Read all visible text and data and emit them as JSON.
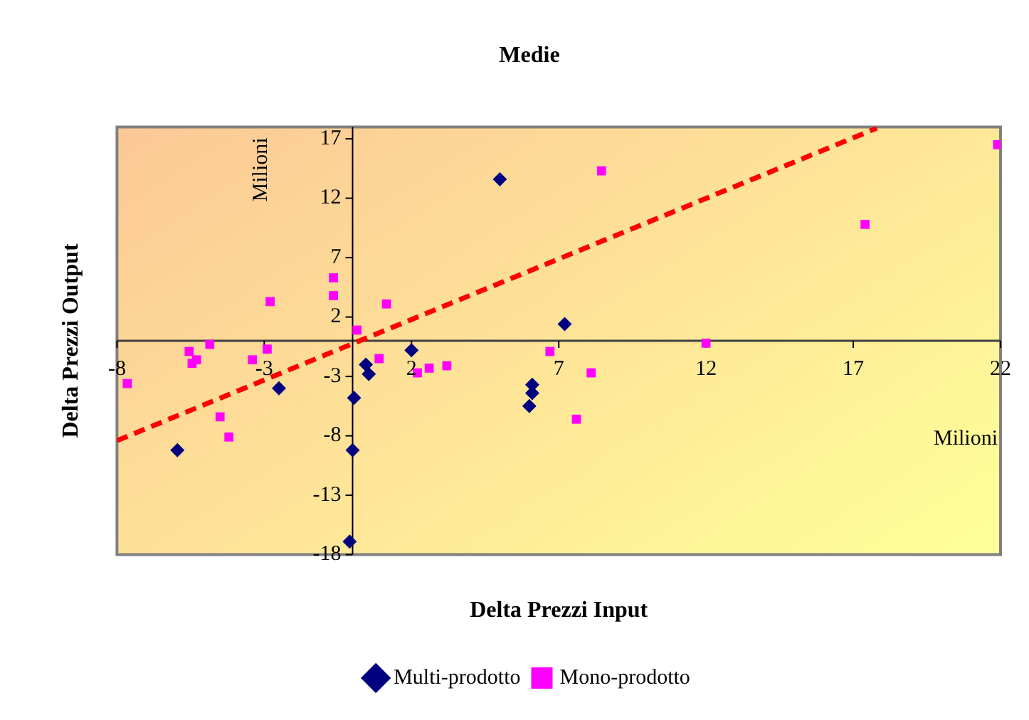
{
  "chart_data": {
    "type": "scatter",
    "title": "Medie",
    "xlabel": "Delta Prezzi Input",
    "ylabel": "Delta Prezzi Output",
    "annotations": [
      "Milioni",
      "Milioni"
    ],
    "xlim": [
      -8,
      22
    ],
    "xticks": [
      -8,
      -3,
      2,
      7,
      12,
      17,
      22
    ],
    "ylim": [
      -18,
      18
    ],
    "yticks": [
      -18,
      -13,
      -8,
      -3,
      2,
      7,
      12,
      17
    ],
    "grid": false,
    "legend": "bottom",
    "series": [
      {
        "name": "Multi-prodotto",
        "color": "#000080",
        "marker": "diamond",
        "x": [
          5.0,
          7.2,
          -5.95,
          -2.5,
          0.05,
          0.0,
          -0.1,
          0.45,
          0.55,
          2.0,
          6.1,
          6.1,
          6.0
        ],
        "values": [
          13.6,
          1.4,
          -9.2,
          -4.0,
          -4.8,
          -9.2,
          -16.9,
          -2.0,
          -2.8,
          -0.8,
          -3.7,
          -4.4,
          -5.5
        ]
      },
      {
        "name": "Mono-prodotto",
        "color": "#ff00ff",
        "marker": "square",
        "x": [
          -7.65,
          -5.55,
          -5.45,
          -5.3,
          -4.85,
          -4.5,
          -4.2,
          -3.4,
          -2.9,
          -2.8,
          -0.65,
          -0.65,
          0.15,
          0.9,
          1.15,
          2.2,
          2.6,
          3.2,
          6.7,
          8.1,
          7.6,
          8.45,
          12.0,
          17.4,
          21.9
        ],
        "values": [
          -3.6,
          -0.9,
          -1.9,
          -1.6,
          -0.3,
          -6.4,
          -8.1,
          -1.6,
          -0.7,
          3.3,
          5.3,
          3.8,
          0.9,
          -1.5,
          3.1,
          -2.7,
          -2.3,
          -2.1,
          -0.9,
          -2.7,
          -6.6,
          14.3,
          -0.2,
          9.8,
          16.5
        ]
      },
      {
        "type": "line",
        "color": "#ff0000",
        "marker": "none",
        "line_style": "dashed",
        "x": [
          -8,
          17.8
        ],
        "values": [
          -8.4,
          17.9
        ]
      }
    ]
  }
}
